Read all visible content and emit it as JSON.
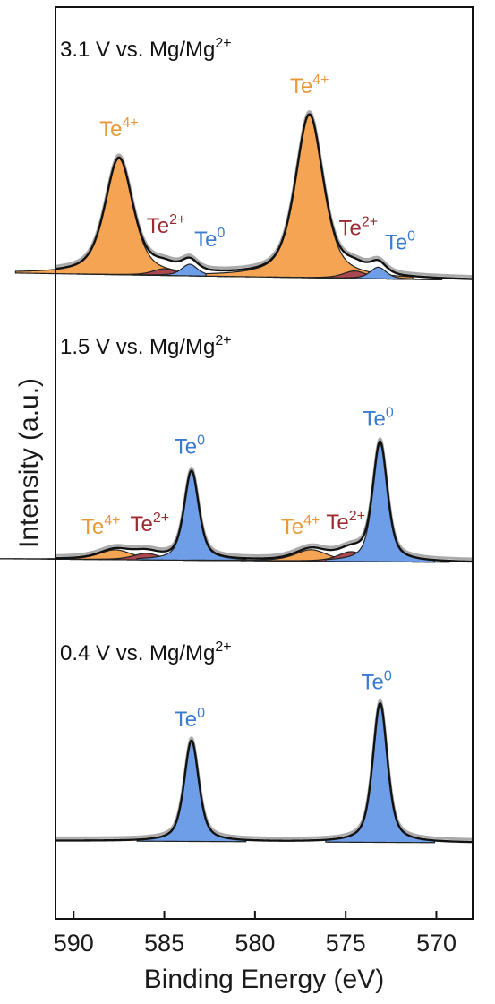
{
  "colors": {
    "te4": "#f5a454",
    "te4_text": "#e69a3a",
    "te2": "#a8474f",
    "te2_text": "#9c2a30",
    "te0": "#6e9ee8",
    "te0_text": "#3a7bd0",
    "envelope": "#aaaaaa",
    "fit": "#111111"
  },
  "chart_data": {
    "type": "area",
    "xlabel": "Binding Energy (eV)",
    "ylabel": "Intensity (a.u.)",
    "xlim": [
      591,
      568
    ],
    "x_reversed": true,
    "x_ticks": [
      590,
      585,
      580,
      575,
      570
    ],
    "panels": [
      {
        "label": "3.1 V vs. Mg/Mg",
        "label_sup": "2+",
        "baseline": [
          0.04,
          0.0
        ],
        "peaks": [
          {
            "species": "Te4+",
            "center": 587.5,
            "height": 0.7,
            "width": 0.95
          },
          {
            "species": "Te2+",
            "center": 585.0,
            "height": 0.04,
            "width": 0.8
          },
          {
            "species": "Te0",
            "center": 583.6,
            "height": 0.07,
            "width": 0.55
          },
          {
            "species": "Te4+",
            "center": 577.0,
            "height": 0.98,
            "width": 0.95
          },
          {
            "species": "Te2+",
            "center": 574.5,
            "height": 0.045,
            "width": 0.8
          },
          {
            "species": "Te0",
            "center": 573.2,
            "height": 0.07,
            "width": 0.55
          }
        ],
        "annotations": [
          {
            "text": "Te",
            "sup": "4+",
            "species": "Te4+",
            "x": 587.5
          },
          {
            "text": "Te",
            "sup": "2+",
            "species": "Te2+",
            "x": 584.9
          },
          {
            "text": "Te",
            "sup": "0",
            "species": "Te0",
            "x": 582.5
          },
          {
            "text": "Te",
            "sup": "4+",
            "species": "Te4+",
            "x": 577.0
          },
          {
            "text": "Te",
            "sup": "2+",
            "species": "Te2+",
            "x": 574.3
          },
          {
            "text": "Te",
            "sup": "0",
            "species": "Te0",
            "x": 572.0
          }
        ]
      },
      {
        "label": "1.5 V vs. Mg/Mg",
        "label_sup": "2+",
        "baseline": [
          0.02,
          0.0
        ],
        "peaks": [
          {
            "species": "Te4+",
            "center": 587.7,
            "height": 0.06,
            "width": 1.1
          },
          {
            "species": "Te2+",
            "center": 586.0,
            "height": 0.04,
            "width": 0.9
          },
          {
            "species": "Te0",
            "center": 583.5,
            "height": 0.54,
            "width": 0.5
          },
          {
            "species": "Te4+",
            "center": 576.9,
            "height": 0.07,
            "width": 1.1
          },
          {
            "species": "Te2+",
            "center": 574.7,
            "height": 0.06,
            "width": 0.9
          },
          {
            "species": "Te0",
            "center": 573.1,
            "height": 0.72,
            "width": 0.5
          }
        ],
        "annotations": [
          {
            "text": "Te",
            "sup": "4+",
            "species": "Te4+",
            "x": 588.5
          },
          {
            "text": "Te",
            "sup": "2+",
            "species": "Te2+",
            "x": 585.8
          },
          {
            "text": "Te",
            "sup": "0",
            "species": "Te0",
            "x": 583.6
          },
          {
            "text": "Te",
            "sup": "4+",
            "species": "Te4+",
            "x": 577.5
          },
          {
            "text": "Te",
            "sup": "2+",
            "species": "Te2+",
            "x": 575.0
          },
          {
            "text": "Te",
            "sup": "0",
            "species": "Te0",
            "x": 573.2
          }
        ]
      },
      {
        "label": "0.4 V vs. Mg/Mg",
        "label_sup": "2+",
        "baseline": [
          0.01,
          0.0
        ],
        "peaks": [
          {
            "species": "Te0",
            "center": 583.5,
            "height": 0.5,
            "width": 0.5
          },
          {
            "species": "Te0",
            "center": 573.1,
            "height": 0.69,
            "width": 0.5
          }
        ],
        "annotations": [
          {
            "text": "Te",
            "sup": "0",
            "species": "Te0",
            "x": 583.6
          },
          {
            "text": "Te",
            "sup": "0",
            "species": "Te0",
            "x": 573.3
          }
        ]
      }
    ]
  }
}
